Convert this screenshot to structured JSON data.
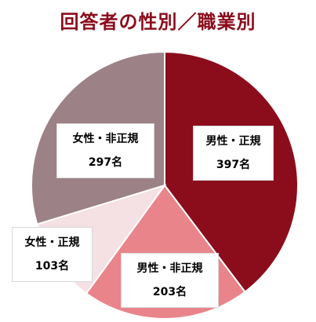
{
  "chart_data": {
    "type": "pie",
    "title": "回答者の性別／職業別",
    "start_angle_deg": 0,
    "direction": "clockwise",
    "slices": [
      {
        "label": "男性・正規",
        "value": 397,
        "display": "397名",
        "color": "#8b0d1c"
      },
      {
        "label": "男性・非正規",
        "value": 203,
        "display": "203名",
        "color": "#e9848b"
      },
      {
        "label": "女性・正規",
        "value": 103,
        "display": "103名",
        "color": "#f5e0e3"
      },
      {
        "label": "女性・非正規",
        "value": 297,
        "display": "297名",
        "color": "#9c8186"
      }
    ]
  }
}
